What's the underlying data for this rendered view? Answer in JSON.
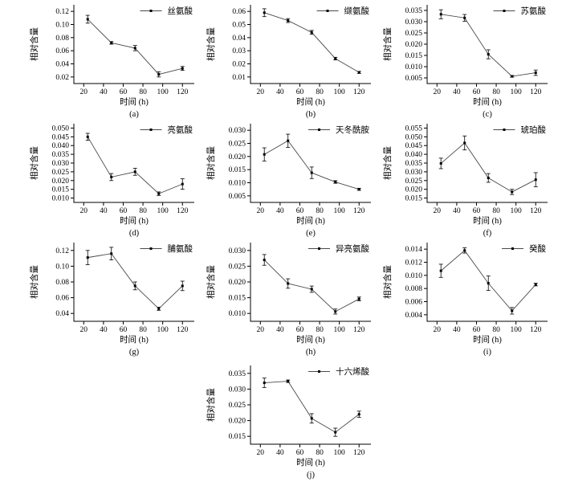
{
  "figure": {
    "background": "#ffffff",
    "axis_color": "#000000",
    "line_color": "#4a4a4a",
    "marker_color": "#000000",
    "text_color": "#000000"
  },
  "chart_data": [
    {
      "type": "line",
      "caption": "(a)",
      "legend": "丝氨酸",
      "xlabel": "时间 (h)",
      "ylabel": "相对含量",
      "x": [
        24,
        48,
        72,
        96,
        120
      ],
      "values": [
        0.108,
        0.072,
        0.064,
        0.024,
        0.033
      ],
      "errors": [
        0.006,
        0.002,
        0.004,
        0.004,
        0.003
      ],
      "xticks": [
        "20",
        "40",
        "60",
        "80",
        "100",
        "120"
      ],
      "xlim": [
        10,
        132
      ],
      "yticks": [
        "0.02",
        "0.04",
        "0.06",
        "0.08",
        "0.10",
        "0.12"
      ],
      "ylim": [
        0.01,
        0.13
      ]
    },
    {
      "type": "line",
      "caption": "(b)",
      "legend": "缬氨酸",
      "xlabel": "时间 (h)",
      "ylabel": "相对含量",
      "x": [
        24,
        48,
        72,
        96,
        120
      ],
      "values": [
        0.059,
        0.053,
        0.044,
        0.024,
        0.0135
      ],
      "errors": [
        0.003,
        0.0015,
        0.0015,
        0.001,
        0.0008
      ],
      "xticks": [
        "20",
        "40",
        "60",
        "80",
        "100",
        "120"
      ],
      "xlim": [
        10,
        132
      ],
      "yticks": [
        "0.01",
        "0.02",
        "0.03",
        "0.04",
        "0.05",
        "0.06"
      ],
      "ylim": [
        0.005,
        0.065
      ]
    },
    {
      "type": "line",
      "caption": "(c)",
      "legend": "苏氨酸",
      "xlabel": "时间 (h)",
      "ylabel": "相对含量",
      "x": [
        24,
        48,
        72,
        96,
        120
      ],
      "values": [
        0.0333,
        0.0317,
        0.0155,
        0.0057,
        0.0073
      ],
      "errors": [
        0.002,
        0.0015,
        0.002,
        0.0004,
        0.0012
      ],
      "xticks": [
        "20",
        "40",
        "60",
        "80",
        "100",
        "120"
      ],
      "xlim": [
        10,
        132
      ],
      "yticks": [
        "0.005",
        "0.010",
        "0.015",
        "0.020",
        "0.025",
        "0.030",
        "0.035"
      ],
      "ylim": [
        0.0025,
        0.0375
      ]
    },
    {
      "type": "line",
      "caption": "(d)",
      "legend": "亮氨酸",
      "xlabel": "时间 (h)",
      "ylabel": "相对含量",
      "x": [
        24,
        48,
        72,
        96,
        120
      ],
      "values": [
        0.045,
        0.022,
        0.025,
        0.0125,
        0.018
      ],
      "errors": [
        0.002,
        0.002,
        0.002,
        0.001,
        0.003
      ],
      "xticks": [
        "20",
        "40",
        "60",
        "80",
        "100",
        "120"
      ],
      "xlim": [
        10,
        132
      ],
      "yticks": [
        "0.010",
        "0.015",
        "0.020",
        "0.025",
        "0.030",
        "0.035",
        "0.040",
        "0.045",
        "0.050"
      ],
      "ylim": [
        0.0075,
        0.0525
      ]
    },
    {
      "type": "line",
      "caption": "(e)",
      "legend": "天冬酰胺",
      "xlabel": "时间 (h)",
      "ylabel": "相对含量",
      "x": [
        24,
        48,
        72,
        96,
        120
      ],
      "values": [
        0.0208,
        0.026,
        0.0138,
        0.0103,
        0.0075
      ],
      "errors": [
        0.0025,
        0.0025,
        0.0022,
        0.0005,
        0.0004
      ],
      "xticks": [
        "20",
        "40",
        "60",
        "80",
        "100",
        "120"
      ],
      "xlim": [
        10,
        132
      ],
      "yticks": [
        "0.005",
        "0.010",
        "0.015",
        "0.020",
        "0.025",
        "0.030"
      ],
      "ylim": [
        0.0025,
        0.0325
      ]
    },
    {
      "type": "line",
      "caption": "(f)",
      "legend": "琥珀酸",
      "xlabel": "时间 (h)",
      "ylabel": "相对含量",
      "x": [
        24,
        48,
        72,
        96,
        120
      ],
      "values": [
        0.0348,
        0.0465,
        0.0265,
        0.0185,
        0.0255
      ],
      "errors": [
        0.003,
        0.004,
        0.0025,
        0.0015,
        0.004
      ],
      "xticks": [
        "20",
        "40",
        "60",
        "80",
        "100",
        "120"
      ],
      "xlim": [
        10,
        132
      ],
      "yticks": [
        "0.015",
        "0.020",
        "0.025",
        "0.030",
        "0.035",
        "0.040",
        "0.045",
        "0.050",
        "0.055"
      ],
      "ylim": [
        0.0125,
        0.0575
      ]
    },
    {
      "type": "line",
      "caption": "(g)",
      "legend": "脯氨酸",
      "xlabel": "时间 (h)",
      "ylabel": "相对含量",
      "x": [
        24,
        48,
        72,
        96,
        120
      ],
      "values": [
        0.111,
        0.116,
        0.075,
        0.046,
        0.075
      ],
      "errors": [
        0.009,
        0.008,
        0.005,
        0.002,
        0.006
      ],
      "xticks": [
        "20",
        "40",
        "60",
        "80",
        "100",
        "120"
      ],
      "xlim": [
        10,
        132
      ],
      "yticks": [
        "0.04",
        "0.06",
        "0.08",
        "0.10",
        "0.12"
      ],
      "ylim": [
        0.03,
        0.13
      ]
    },
    {
      "type": "line",
      "caption": "(h)",
      "legend": "异亮氨酸",
      "xlabel": "时间 (h)",
      "ylabel": "相对含量",
      "x": [
        24,
        48,
        72,
        96,
        120
      ],
      "values": [
        0.027,
        0.0195,
        0.0177,
        0.0106,
        0.0146
      ],
      "errors": [
        0.0017,
        0.0015,
        0.001,
        0.0008,
        0.0006
      ],
      "xticks": [
        "20",
        "40",
        "60",
        "80",
        "100",
        "120"
      ],
      "xlim": [
        10,
        132
      ],
      "yticks": [
        "0.010",
        "0.015",
        "0.020",
        "0.025",
        "0.030"
      ],
      "ylim": [
        0.0075,
        0.0325
      ]
    },
    {
      "type": "line",
      "caption": "(i)",
      "legend": "癸酸",
      "xlabel": "时间 (h)",
      "ylabel": "相对含量",
      "x": [
        24,
        48,
        72,
        96,
        120
      ],
      "values": [
        0.0107,
        0.0138,
        0.0088,
        0.0046,
        0.0086
      ],
      "errors": [
        0.001,
        0.0004,
        0.0011,
        0.0005,
        0.0002
      ],
      "xticks": [
        "20",
        "40",
        "60",
        "80",
        "100",
        "120"
      ],
      "xlim": [
        10,
        132
      ],
      "yticks": [
        "0.004",
        "0.006",
        "0.008",
        "0.010",
        "0.012",
        "0.014"
      ],
      "ylim": [
        0.003,
        0.015
      ]
    },
    {
      "type": "line",
      "caption": "(j)",
      "legend": "十六烯酸",
      "xlabel": "时间 (h)",
      "ylabel": "相对含量",
      "x": [
        24,
        48,
        72,
        96,
        120
      ],
      "values": [
        0.032,
        0.0325,
        0.0207,
        0.0163,
        0.022
      ],
      "errors": [
        0.0015,
        0.0004,
        0.0015,
        0.0013,
        0.001
      ],
      "xticks": [
        "20",
        "40",
        "60",
        "80",
        "100",
        "120"
      ],
      "xlim": [
        10,
        132
      ],
      "yticks": [
        "0.015",
        "0.020",
        "0.025",
        "0.030",
        "0.035"
      ],
      "ylim": [
        0.0125,
        0.0375
      ]
    }
  ]
}
